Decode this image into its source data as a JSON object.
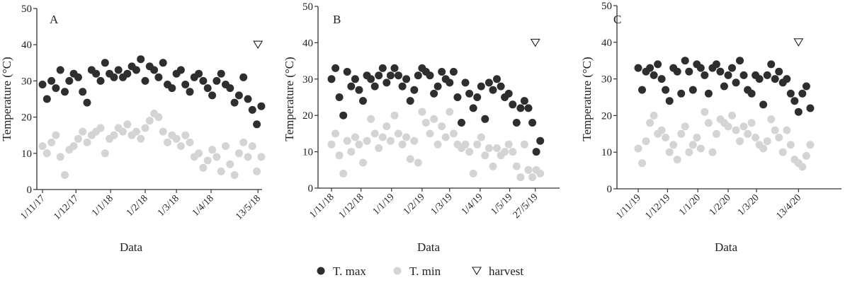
{
  "legend": {
    "tmax": "T. max",
    "tmin": "T. min",
    "harvest": "harvest"
  },
  "colors": {
    "tmax": "#2e2e2e",
    "tmin": "#d4d4d4",
    "axis": "#333333"
  },
  "chart_data": [
    {
      "type": "scatter",
      "panel_label": "A",
      "xlabel": "Data",
      "ylabel": "Temperature (°C)",
      "ylim": [
        0,
        50
      ],
      "yticks": [
        0,
        10,
        20,
        30,
        40,
        50
      ],
      "grid": false,
      "xtick_labels": [
        "1/11/17",
        "1/12/17",
        "1/1/18",
        "1/2/18",
        "1/3/18",
        "1/4/18",
        "13/5/18"
      ],
      "xtick_dates": [
        "2017-11-01",
        "2017-12-01",
        "2018-01-01",
        "2018-02-01",
        "2018-03-01",
        "2018-04-01",
        "2018-05-13"
      ],
      "harvest": {
        "date": "2018-05-13",
        "value": 40
      },
      "dates": [
        "2017-11-01",
        "2017-11-05",
        "2017-11-09",
        "2017-11-13",
        "2017-11-17",
        "2017-11-21",
        "2017-11-25",
        "2017-11-29",
        "2017-12-03",
        "2017-12-07",
        "2017-12-11",
        "2017-12-15",
        "2017-12-19",
        "2017-12-23",
        "2017-12-27",
        "2017-12-31",
        "2018-01-04",
        "2018-01-08",
        "2018-01-12",
        "2018-01-16",
        "2018-01-20",
        "2018-01-24",
        "2018-01-28",
        "2018-02-01",
        "2018-02-05",
        "2018-02-09",
        "2018-02-13",
        "2018-02-17",
        "2018-02-21",
        "2018-02-25",
        "2018-03-01",
        "2018-03-05",
        "2018-03-09",
        "2018-03-13",
        "2018-03-17",
        "2018-03-21",
        "2018-03-25",
        "2018-03-29",
        "2018-04-02",
        "2018-04-06",
        "2018-04-10",
        "2018-04-14",
        "2018-04-18",
        "2018-04-22",
        "2018-04-26",
        "2018-04-30",
        "2018-05-04",
        "2018-05-08",
        "2018-05-12",
        "2018-05-16"
      ],
      "series": [
        {
          "name": "T. max",
          "values": [
            29,
            25,
            30,
            28,
            33,
            27,
            30,
            32,
            31,
            27,
            24,
            33,
            32,
            30,
            35,
            32,
            31,
            33,
            31,
            32,
            34,
            33,
            36,
            30,
            34,
            33,
            31,
            35,
            29,
            28,
            32,
            33,
            29,
            27,
            31,
            32,
            30,
            28,
            26,
            30,
            32,
            29,
            28,
            24,
            26,
            31,
            25,
            22,
            18,
            23
          ]
        },
        {
          "name": "T. min",
          "values": [
            12,
            10,
            13,
            15,
            9,
            4,
            11,
            12,
            14,
            16,
            13,
            15,
            16,
            17,
            10,
            14,
            15,
            17,
            16,
            18,
            15,
            16,
            14,
            17,
            19,
            21,
            20,
            16,
            13,
            15,
            14,
            12,
            15,
            13,
            9,
            10,
            6,
            8,
            11,
            9,
            5,
            12,
            7,
            4,
            10,
            13,
            9,
            12,
            5,
            9
          ]
        }
      ]
    },
    {
      "type": "scatter",
      "panel_label": "B",
      "xlabel": "Data",
      "ylabel": "Temperature (°C)",
      "ylim": [
        0,
        50
      ],
      "yticks": [
        0,
        10,
        20,
        30,
        40,
        50
      ],
      "grid": false,
      "xtick_labels": [
        "1/11/18",
        "1/12/18",
        "1/1/19",
        "1/2/19",
        "1/3/19",
        "1/4/19",
        "1/5/19",
        "27/5/19"
      ],
      "xtick_dates": [
        "2018-11-01",
        "2018-12-01",
        "2019-01-01",
        "2019-02-01",
        "2019-03-01",
        "2019-04-01",
        "2019-05-01",
        "2019-05-27"
      ],
      "harvest": {
        "date": "2019-05-27",
        "value": 40
      },
      "dates": [
        "2018-11-01",
        "2018-11-05",
        "2018-11-09",
        "2018-11-13",
        "2018-11-17",
        "2018-11-21",
        "2018-11-25",
        "2018-11-29",
        "2018-12-03",
        "2018-12-07",
        "2018-12-11",
        "2018-12-15",
        "2018-12-19",
        "2018-12-23",
        "2018-12-27",
        "2018-12-31",
        "2019-01-04",
        "2019-01-08",
        "2019-01-12",
        "2019-01-16",
        "2019-01-20",
        "2019-01-24",
        "2019-01-28",
        "2019-02-01",
        "2019-02-05",
        "2019-02-09",
        "2019-02-13",
        "2019-02-17",
        "2019-02-21",
        "2019-02-25",
        "2019-03-01",
        "2019-03-05",
        "2019-03-09",
        "2019-03-13",
        "2019-03-17",
        "2019-03-21",
        "2019-03-25",
        "2019-03-29",
        "2019-04-02",
        "2019-04-06",
        "2019-04-10",
        "2019-04-14",
        "2019-04-18",
        "2019-04-22",
        "2019-04-26",
        "2019-04-30",
        "2019-05-04",
        "2019-05-08",
        "2019-05-12",
        "2019-05-16",
        "2019-05-20",
        "2019-05-24",
        "2019-05-28",
        "2019-06-01"
      ],
      "series": [
        {
          "name": "T. max",
          "values": [
            30,
            33,
            25,
            20,
            32,
            28,
            30,
            27,
            24,
            31,
            30,
            28,
            31,
            33,
            29,
            31,
            33,
            31,
            28,
            30,
            24,
            27,
            31,
            33,
            32,
            31,
            26,
            28,
            32,
            30,
            29,
            32,
            25,
            18,
            29,
            26,
            22,
            25,
            28,
            19,
            29,
            27,
            30,
            28,
            25,
            26,
            23,
            18,
            22,
            24,
            22,
            18,
            10,
            13
          ]
        },
        {
          "name": "T. min",
          "values": [
            12,
            15,
            9,
            4,
            13,
            10,
            14,
            12,
            7,
            13,
            19,
            15,
            11,
            14,
            17,
            13,
            20,
            15,
            12,
            14,
            8,
            13,
            7,
            21,
            18,
            15,
            19,
            12,
            17,
            14,
            21,
            15,
            12,
            11,
            12,
            10,
            4,
            12,
            14,
            9,
            11,
            6,
            11,
            9,
            10,
            12,
            10,
            6,
            3,
            12,
            5,
            3,
            5,
            4
          ]
        }
      ]
    },
    {
      "type": "scatter",
      "panel_label": "C",
      "xlabel": "Data",
      "ylabel": "Temperature (°C)",
      "ylim": [
        0,
        50
      ],
      "yticks": [
        0,
        10,
        20,
        30,
        40,
        50
      ],
      "grid": false,
      "xtick_labels": [
        "1/11/19",
        "1/12/19",
        "1/1/20",
        "1/2/20",
        "1/3/20",
        "13/4/20"
      ],
      "xtick_dates": [
        "2019-11-01",
        "2019-12-01",
        "2020-01-01",
        "2020-02-01",
        "2020-03-01",
        "2020-04-13"
      ],
      "harvest": {
        "date": "2020-04-13",
        "value": 40
      },
      "dates": [
        "2019-11-01",
        "2019-11-05",
        "2019-11-09",
        "2019-11-13",
        "2019-11-17",
        "2019-11-21",
        "2019-11-25",
        "2019-11-29",
        "2019-12-03",
        "2019-12-07",
        "2019-12-11",
        "2019-12-15",
        "2019-12-19",
        "2019-12-23",
        "2019-12-27",
        "2019-12-31",
        "2020-01-04",
        "2020-01-08",
        "2020-01-12",
        "2020-01-16",
        "2020-01-20",
        "2020-01-24",
        "2020-01-28",
        "2020-02-01",
        "2020-02-05",
        "2020-02-09",
        "2020-02-13",
        "2020-02-17",
        "2020-02-21",
        "2020-02-25",
        "2020-02-29",
        "2020-03-04",
        "2020-03-08",
        "2020-03-12",
        "2020-03-16",
        "2020-03-20",
        "2020-03-24",
        "2020-03-28",
        "2020-04-01",
        "2020-04-05",
        "2020-04-09",
        "2020-04-13",
        "2020-04-17",
        "2020-04-21",
        "2020-04-25"
      ],
      "series": [
        {
          "name": "T. max",
          "values": [
            33,
            27,
            32,
            33,
            31,
            34,
            30,
            27,
            24,
            33,
            32,
            26,
            35,
            32,
            27,
            34,
            33,
            31,
            26,
            33,
            34,
            32,
            28,
            31,
            33,
            29,
            35,
            31,
            27,
            26,
            31,
            30,
            23,
            31,
            34,
            30,
            32,
            29,
            30,
            26,
            24,
            21,
            26,
            28,
            22
          ]
        },
        {
          "name": "T. min",
          "values": [
            11,
            7,
            13,
            18,
            20,
            15,
            16,
            14,
            10,
            12,
            8,
            15,
            17,
            10,
            12,
            14,
            11,
            21,
            18,
            10,
            15,
            19,
            18,
            17,
            20,
            16,
            13,
            17,
            15,
            18,
            14,
            12,
            11,
            13,
            19,
            16,
            14,
            10,
            16,
            12,
            8,
            7,
            6,
            9,
            12
          ]
        }
      ]
    }
  ]
}
